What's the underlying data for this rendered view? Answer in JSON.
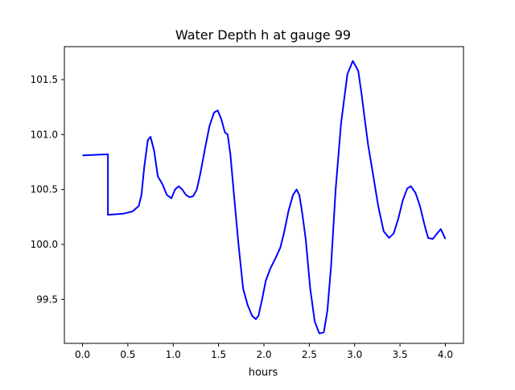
{
  "chart_data": {
    "type": "line",
    "title": "Water Depth h at gauge 99",
    "xlabel": "hours",
    "ylabel": "",
    "xlim": [
      -0.2,
      4.2
    ],
    "ylim": [
      99.1,
      101.8
    ],
    "xticks": [
      0.0,
      0.5,
      1.0,
      1.5,
      2.0,
      2.5,
      3.0,
      3.5,
      4.0
    ],
    "xtick_labels": [
      "0.0",
      "0.5",
      "1.0",
      "1.5",
      "2.0",
      "2.5",
      "3.0",
      "3.5",
      "4.0"
    ],
    "yticks": [
      99.5,
      100.0,
      100.5,
      101.0,
      101.5
    ],
    "ytick_labels": [
      "99.5",
      "100.0",
      "100.5",
      "101.0",
      "101.5"
    ],
    "grid": false,
    "series": [
      {
        "color": "#0000ff",
        "x": [
          0.0,
          0.28,
          0.28,
          0.45,
          0.55,
          0.62,
          0.65,
          0.68,
          0.72,
          0.75,
          0.79,
          0.83,
          0.88,
          0.93,
          0.98,
          1.02,
          1.06,
          1.1,
          1.14,
          1.18,
          1.22,
          1.26,
          1.3,
          1.35,
          1.4,
          1.45,
          1.49,
          1.53,
          1.57,
          1.6,
          1.63,
          1.67,
          1.72,
          1.77,
          1.82,
          1.87,
          1.91,
          1.94,
          1.98,
          2.02,
          2.07,
          2.13,
          2.18,
          2.22,
          2.27,
          2.32,
          2.36,
          2.39,
          2.42,
          2.46,
          2.51,
          2.56,
          2.61,
          2.66,
          2.7,
          2.74,
          2.79,
          2.85,
          2.92,
          2.98,
          3.04,
          3.08,
          3.11,
          3.15,
          3.2,
          3.26,
          3.32,
          3.38,
          3.43,
          3.48,
          3.53,
          3.58,
          3.62,
          3.67,
          3.72,
          3.77,
          3.81,
          3.86,
          3.91,
          3.95,
          4.0
        ],
        "y": [
          100.81,
          100.82,
          100.27,
          100.28,
          100.3,
          100.35,
          100.45,
          100.7,
          100.95,
          100.98,
          100.85,
          100.62,
          100.55,
          100.45,
          100.42,
          100.5,
          100.53,
          100.5,
          100.45,
          100.43,
          100.44,
          100.5,
          100.65,
          100.87,
          101.08,
          101.2,
          101.22,
          101.14,
          101.02,
          101.0,
          100.82,
          100.45,
          100.0,
          99.6,
          99.45,
          99.35,
          99.32,
          99.35,
          99.5,
          99.67,
          99.78,
          99.88,
          99.97,
          100.1,
          100.3,
          100.45,
          100.5,
          100.45,
          100.3,
          100.05,
          99.6,
          99.3,
          99.19,
          99.2,
          99.4,
          99.8,
          100.5,
          101.1,
          101.55,
          101.67,
          101.58,
          101.35,
          101.15,
          100.9,
          100.65,
          100.35,
          100.12,
          100.06,
          100.1,
          100.23,
          100.4,
          100.51,
          100.53,
          100.47,
          100.35,
          100.18,
          100.06,
          100.05,
          100.1,
          100.14,
          100.05
        ]
      }
    ]
  }
}
